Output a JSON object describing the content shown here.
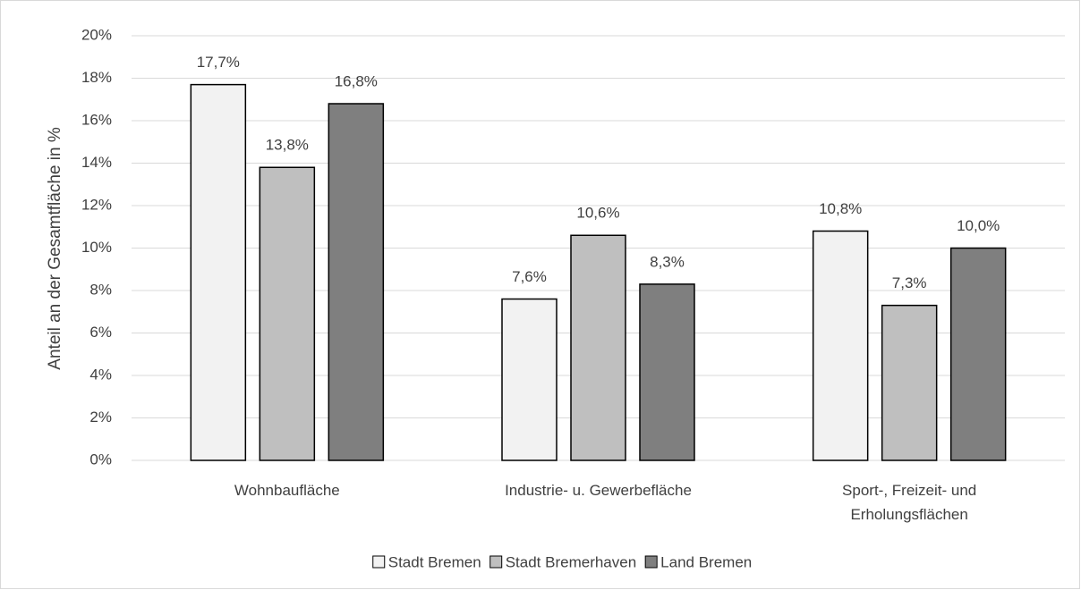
{
  "chart_data": {
    "type": "bar",
    "y_label": "Anteil an der Gesamtfläche in %",
    "categories": [
      "Wohnbaufläche",
      "Industrie- u. Gewerbefläche",
      "Sport-, Freizeit- und\nErholungsflächen"
    ],
    "series": [
      {
        "name": "Stadt Bremen",
        "color": "#f2f2f2",
        "values": [
          17.7,
          7.6,
          10.8
        ],
        "value_labels": [
          "17,7%",
          "7,6%",
          "10,8%"
        ]
      },
      {
        "name": "Stadt Bremerhaven",
        "color": "#bfbfbf",
        "values": [
          13.8,
          10.6,
          7.3
        ],
        "value_labels": [
          "13,8%",
          "10,6%",
          "7,3%"
        ]
      },
      {
        "name": "Land Bremen",
        "color": "#7f7f7f",
        "values": [
          16.8,
          8.3,
          10.0
        ],
        "value_labels": [
          "16,8%",
          "8,3%",
          "10,0%"
        ]
      }
    ],
    "ylim": [
      0,
      20
    ],
    "yticks": [
      {
        "value": 0,
        "label": "0%"
      },
      {
        "value": 2,
        "label": "2%"
      },
      {
        "value": 4,
        "label": "4%"
      },
      {
        "value": 6,
        "label": "6%"
      },
      {
        "value": 8,
        "label": "8%"
      },
      {
        "value": 10,
        "label": "10%"
      },
      {
        "value": 12,
        "label": "12%"
      },
      {
        "value": 14,
        "label": "14%"
      },
      {
        "value": 16,
        "label": "16%"
      },
      {
        "value": 18,
        "label": "18%"
      },
      {
        "value": 20,
        "label": "20%"
      }
    ],
    "grid": true,
    "legend": "bottom"
  }
}
